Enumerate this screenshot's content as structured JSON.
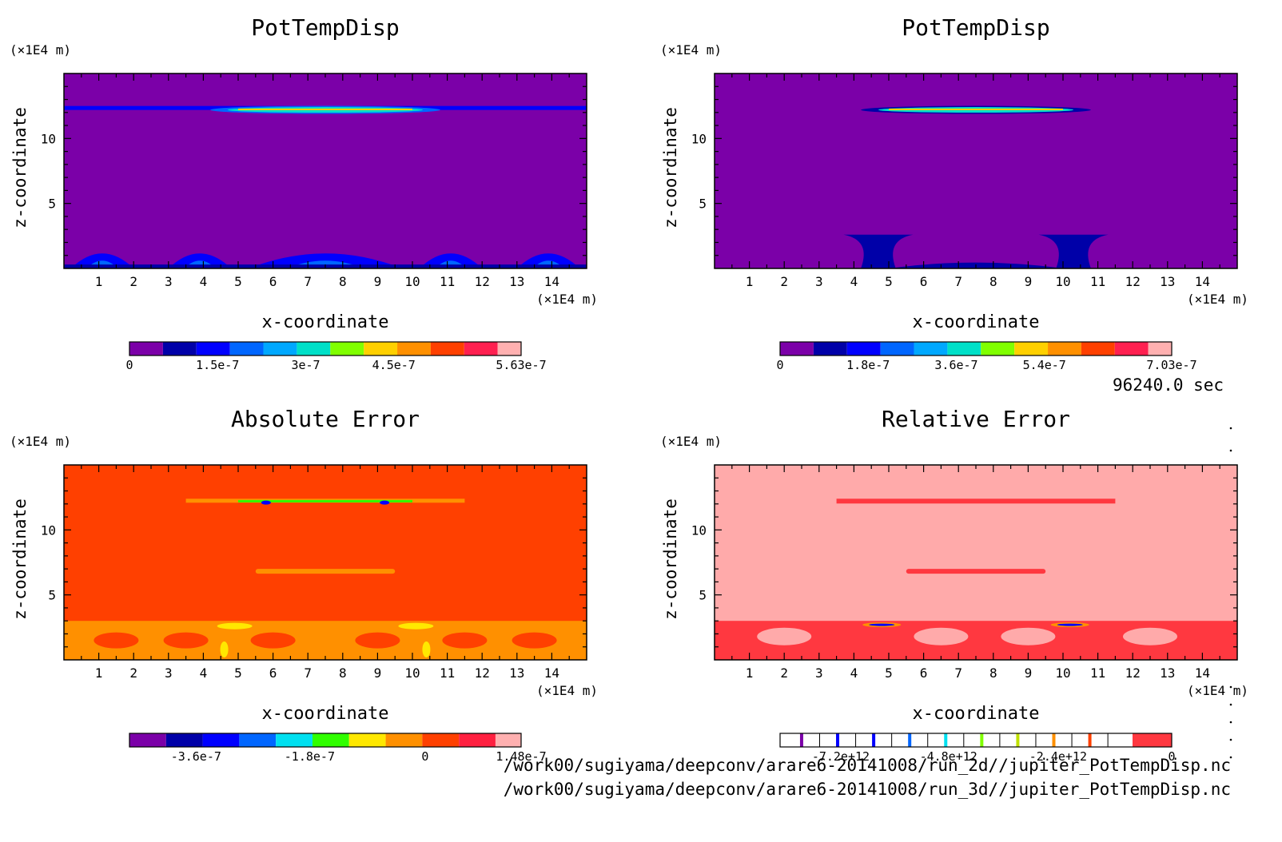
{
  "chart_data": [
    {
      "type": "heatmap",
      "title": "PotTempDisp",
      "xlabel": "x-coordinate",
      "ylabel": "z-coordinate",
      "x_unit": "(×1E4 m)",
      "y_unit": "(×1E4 m)",
      "x_ticks": [
        "1",
        "2",
        "3",
        "4",
        "5",
        "6",
        "7",
        "8",
        "9",
        "10",
        "11",
        "12",
        "13",
        "14"
      ],
      "y_ticks": [
        "5",
        "10"
      ],
      "xlim": [
        0,
        15
      ],
      "ylim": [
        0,
        15
      ],
      "colorbar": {
        "labels": [
          "0",
          "1.5e-7",
          "3e-7",
          "4.5e-7",
          "5.63e-7"
        ],
        "colors": [
          "#7b00a8",
          "#0000a8",
          "#0000ff",
          "#0066ff",
          "#00a8ff",
          "#00e0c8",
          "#80ff00",
          "#ffd000",
          "#ff9000",
          "#ff4000",
          "#ff2050",
          "#ffb0b0"
        ]
      },
      "background_color": "#7b00a8",
      "features": [
        {
          "name": "upper-layer-band",
          "z": 12.2,
          "x": [
            4.5,
            10.5
          ],
          "peak_color": "#ffd000"
        },
        {
          "name": "lower-plumes",
          "z": [
            0,
            2
          ],
          "x": [
            1,
            4,
            7,
            11,
            14
          ],
          "color": "#0000ff"
        }
      ]
    },
    {
      "type": "heatmap",
      "title": "PotTempDisp",
      "xlabel": "x-coordinate",
      "ylabel": "z-coordinate",
      "x_unit": "(×1E4 m)",
      "y_unit": "(×1E4 m)",
      "x_ticks": [
        "1",
        "2",
        "3",
        "4",
        "5",
        "6",
        "7",
        "8",
        "9",
        "10",
        "11",
        "12",
        "13",
        "14"
      ],
      "y_ticks": [
        "5",
        "10"
      ],
      "xlim": [
        0,
        15
      ],
      "ylim": [
        0,
        15
      ],
      "colorbar": {
        "labels": [
          "0",
          "1.8e-7",
          "3.6e-7",
          "5.4e-7",
          "7.03e-7"
        ],
        "colors": [
          "#7b00a8",
          "#0000a8",
          "#0000ff",
          "#0066ff",
          "#00a8ff",
          "#00e0c8",
          "#80ff00",
          "#ffd000",
          "#ff9000",
          "#ff4000",
          "#ff2050",
          "#ffb0b0"
        ]
      },
      "background_color": "#7b00a8",
      "features": [
        {
          "name": "upper-layer-band",
          "z": 12.2,
          "x": [
            4.5,
            10.5
          ],
          "peak_color": "#ffd000"
        },
        {
          "name": "mushroom-plumes",
          "z": [
            0,
            2.5
          ],
          "x": [
            4.5,
            10.5
          ],
          "color": "#0000a8"
        }
      ]
    },
    {
      "type": "heatmap",
      "title": "Absolute Error",
      "xlabel": "x-coordinate",
      "ylabel": "z-coordinate",
      "x_unit": "(×1E4 m)",
      "y_unit": "(×1E4 m)",
      "x_ticks": [
        "1",
        "2",
        "3",
        "4",
        "5",
        "6",
        "7",
        "8",
        "9",
        "10",
        "11",
        "12",
        "13",
        "14"
      ],
      "y_ticks": [
        "5",
        "10"
      ],
      "xlim": [
        0,
        15
      ],
      "ylim": [
        0,
        15
      ],
      "colorbar": {
        "labels": [
          "-3.6e-7",
          "-1.8e-7",
          "0",
          "1.48e-7"
        ],
        "colors": [
          "#7b00a8",
          "#0000a8",
          "#0000ff",
          "#0066ff",
          "#00e0f0",
          "#30ff00",
          "#ffe800",
          "#ff9000",
          "#ff4000",
          "#ff2040",
          "#ffb0b0"
        ]
      },
      "background_color": "#ff4000",
      "features": [
        {
          "name": "upper-error-band",
          "z": 12.2,
          "x": [
            3.5,
            11.5
          ]
        },
        {
          "name": "mid-error-band",
          "z": 6.8,
          "x": [
            5.5,
            9.5
          ],
          "color": "#ff9000"
        },
        {
          "name": "lower-error-region",
          "z": [
            0,
            3
          ],
          "x": [
            0,
            15
          ],
          "color": "#ff9000"
        }
      ]
    },
    {
      "type": "heatmap",
      "title": "Relative Error",
      "xlabel": "x-coordinate",
      "ylabel": "z-coordinate",
      "x_unit": "(×1E4 m)",
      "y_unit": "(×1E4 m)",
      "x_ticks": [
        "1",
        "2",
        "3",
        "4",
        "5",
        "6",
        "7",
        "8",
        "9",
        "10",
        "11",
        "12",
        "13",
        "14"
      ],
      "y_ticks": [
        "5",
        "10"
      ],
      "xlim": [
        0,
        15
      ],
      "ylim": [
        0,
        15
      ],
      "colorbar": {
        "labels": [
          "-7.2e+12",
          "-4.8e+12",
          "-2.4e+12",
          "0"
        ],
        "colors": [
          "#ffffff",
          "#ff3840"
        ],
        "line_colors": [
          "#7b00a8",
          "#0000ff",
          "#0000ff",
          "#0066ff",
          "#00e0f0",
          "#80ff00",
          "#c0e000",
          "#ff9000",
          "#ff4000"
        ]
      },
      "background_color": "#ffaaaa",
      "features": [
        {
          "name": "upper-error-band",
          "z": 12.2,
          "x": [
            3.5,
            11.5
          ],
          "color": "#ff3840"
        },
        {
          "name": "mid-error-band",
          "z": 6.8,
          "x": [
            5.5,
            9.5
          ],
          "color": "#ff3840"
        },
        {
          "name": "lower-error-region",
          "z": [
            0,
            3
          ],
          "x": [
            0,
            15
          ],
          "color": "#ff3840"
        }
      ]
    }
  ],
  "time_label": "96240.0 sec",
  "file_paths": [
    "/work00/sugiyama/deepconv/arare6-20141008/run_2d//jupiter_PotTempDisp.nc",
    "/work00/sugiyama/deepconv/arare6-20141008/run_3d//jupiter_PotTempDisp.nc"
  ]
}
